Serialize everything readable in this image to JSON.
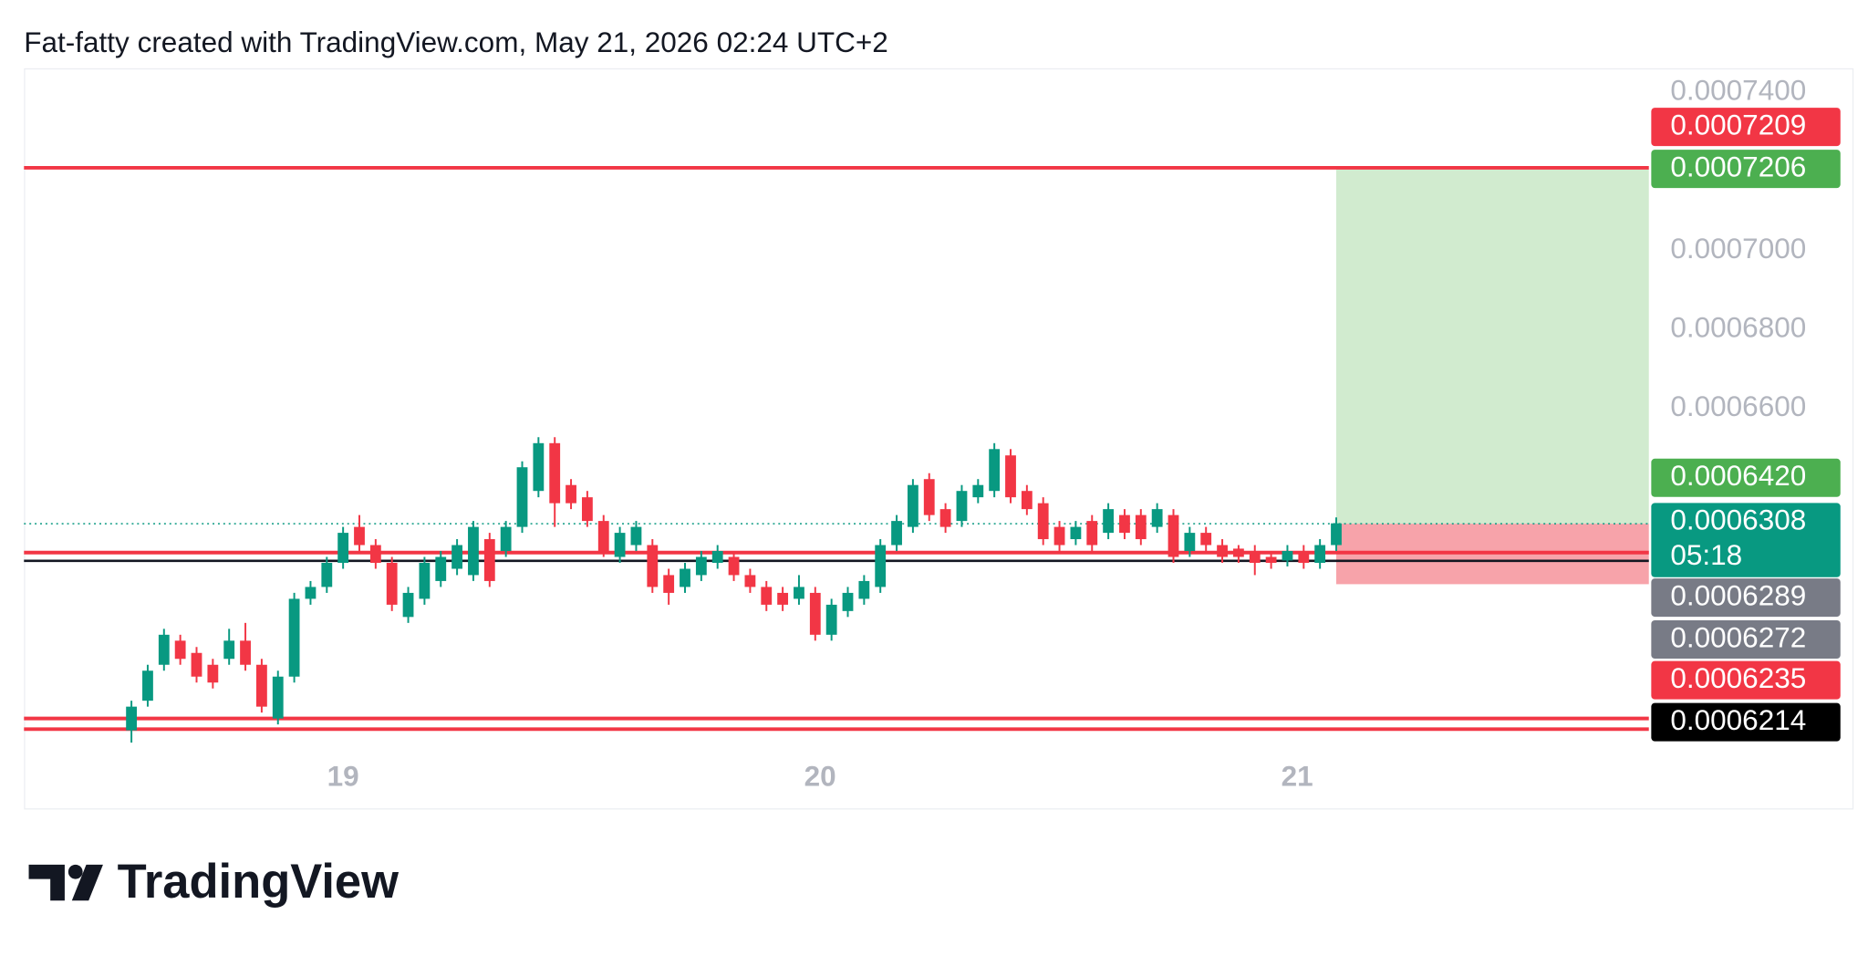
{
  "header": "Fat-fatty created with TradingView.com, May 21, 2026 02:24 UTC+2",
  "logo": "TradingView",
  "chart_data": {
    "type": "candlestick",
    "up_color": "#089981",
    "down_color": "#f23645",
    "open": [
      0.0005785,
      0.000586,
      0.0005951,
      0.0006012,
      0.0005981,
      0.0005951,
      0.0005966,
      0.0006012,
      0.0005951,
      0.0005815,
      0.0005921,
      0.0006118,
      0.0006148,
      0.0006209,
      0.00063,
      0.0006254,
      0.0006209,
      0.0006072,
      0.0006118,
      0.0006163,
      0.0006194,
      0.0006178,
      0.0006269,
      0.0006239,
      0.00063,
      0.0006391,
      0.0006512,
      0.0006406,
      0.0006375,
      0.0006315,
      0.0006224,
      0.0006254,
      0.0006254,
      0.0006178,
      0.0006148,
      0.0006178,
      0.0006209,
      0.0006224,
      0.0006178,
      0.0006148,
      0.0006133,
      0.0006118,
      0.0006133,
      0.0006027,
      0.0006087,
      0.0006118,
      0.0006148,
      0.0006254,
      0.00063,
      0.0006421,
      0.0006345,
      0.0006315,
      0.0006375,
      0.0006391,
      0.0006481,
      0.0006391,
      0.000636,
      0.00063,
      0.0006269,
      0.0006315,
      0.0006285,
      0.000633,
      0.000633,
      0.00063,
      0.000633,
      0.0006239,
      0.0006285,
      0.0006254,
      0.0006245,
      0.0006239,
      0.0006224,
      0.0006215,
      0.0006239,
      0.0006209,
      0.0006254
    ],
    "high": [
      0.000586,
      0.0005951,
      0.0006042,
      0.0006027,
      0.0005996,
      0.0005966,
      0.0006042,
      0.0006057,
      0.0005966,
      0.0005936,
      0.0006133,
      0.0006163,
      0.0006224,
      0.00063,
      0.000633,
      0.0006269,
      0.0006224,
      0.0006148,
      0.0006224,
      0.0006239,
      0.0006269,
      0.0006315,
      0.0006285,
      0.0006315,
      0.0006466,
      0.0006527,
      0.0006527,
      0.0006421,
      0.0006391,
      0.000633,
      0.00063,
      0.0006315,
      0.0006269,
      0.0006194,
      0.0006209,
      0.0006239,
      0.0006254,
      0.0006239,
      0.0006194,
      0.0006163,
      0.0006148,
      0.0006178,
      0.0006148,
      0.0006118,
      0.0006148,
      0.0006178,
      0.0006269,
      0.000633,
      0.0006421,
      0.0006436,
      0.000636,
      0.0006406,
      0.0006421,
      0.0006512,
      0.0006497,
      0.0006406,
      0.0006375,
      0.0006315,
      0.0006315,
      0.000633,
      0.000636,
      0.0006345,
      0.0006345,
      0.000636,
      0.0006345,
      0.00063,
      0.00063,
      0.0006269,
      0.0006254,
      0.0006254,
      0.0006239,
      0.0006254,
      0.0006254,
      0.0006269,
      0.0006324
    ],
    "low": [
      0.0005754,
      0.0005845,
      0.0005936,
      0.0005951,
      0.0005906,
      0.0005891,
      0.0005951,
      0.0005936,
      0.000583,
      0.00058,
      0.0005906,
      0.0006103,
      0.0006133,
      0.0006194,
      0.0006239,
      0.0006194,
      0.0006087,
      0.0006057,
      0.0006103,
      0.0006148,
      0.0006178,
      0.0006163,
      0.0006148,
      0.0006224,
      0.0006285,
      0.0006375,
      0.00063,
      0.0006345,
      0.00063,
      0.0006224,
      0.0006209,
      0.0006239,
      0.0006133,
      0.0006103,
      0.0006133,
      0.0006163,
      0.0006194,
      0.0006163,
      0.0006133,
      0.0006087,
      0.0006087,
      0.0006103,
      0.0006012,
      0.0006012,
      0.0006072,
      0.0006103,
      0.0006133,
      0.0006239,
      0.0006285,
      0.0006315,
      0.0006285,
      0.00063,
      0.000636,
      0.0006375,
      0.000636,
      0.000633,
      0.0006254,
      0.0006239,
      0.0006254,
      0.0006239,
      0.0006269,
      0.0006269,
      0.0006254,
      0.0006285,
      0.0006209,
      0.0006224,
      0.0006239,
      0.0006209,
      0.0006209,
      0.0006178,
      0.0006194,
      0.00062,
      0.0006194,
      0.0006194,
      0.0006239
    ],
    "close": [
      0.0005845,
      0.0005936,
      0.0006027,
      0.0005966,
      0.0005921,
      0.0005906,
      0.0006012,
      0.0005951,
      0.0005845,
      0.0005921,
      0.0006118,
      0.0006148,
      0.0006209,
      0.0006285,
      0.0006254,
      0.0006209,
      0.0006103,
      0.0006133,
      0.0006209,
      0.0006224,
      0.0006254,
      0.00063,
      0.0006163,
      0.00063,
      0.0006451,
      0.0006512,
      0.000636,
      0.000636,
      0.0006315,
      0.0006239,
      0.0006285,
      0.00063,
      0.0006148,
      0.0006133,
      0.0006194,
      0.0006224,
      0.0006239,
      0.0006178,
      0.0006148,
      0.0006103,
      0.0006103,
      0.0006148,
      0.0006027,
      0.0006103,
      0.0006133,
      0.0006163,
      0.0006254,
      0.0006315,
      0.0006406,
      0.000633,
      0.00063,
      0.0006391,
      0.0006406,
      0.0006497,
      0.0006375,
      0.0006345,
      0.0006269,
      0.0006254,
      0.00063,
      0.0006254,
      0.0006345,
      0.0006285,
      0.0006269,
      0.0006345,
      0.0006224,
      0.0006285,
      0.0006254,
      0.0006224,
      0.0006224,
      0.0006209,
      0.0006209,
      0.0006239,
      0.0006209,
      0.0006254,
      0.0006309
    ],
    "xlim": [
      -6.6,
      93.2
    ],
    "xticks": [
      {
        "value": 13,
        "label": "19"
      },
      {
        "value": 42.3,
        "label": "20"
      },
      {
        "value": 71.6,
        "label": "21"
      }
    ],
    "ylim": [
      0.0005724,
      0.0007461
    ],
    "yticks": [
      {
        "value": 0.00074,
        "label": "0.0007400"
      },
      {
        "value": 0.0007,
        "label": "0.0007000"
      },
      {
        "value": 0.00068,
        "label": "0.0006800"
      },
      {
        "value": 0.00066,
        "label": "0.0006600"
      }
    ],
    "lines": [
      {
        "value": 0.0007209,
        "color": "#f23645"
      },
      {
        "value": 0.0006235,
        "color": "#f23645"
      },
      {
        "value": 0.0006214,
        "color": "#131722"
      },
      {
        "value": 0.0005815,
        "color": "#f23645"
      },
      {
        "value": 0.0005788,
        "color": "#f23645"
      }
    ],
    "last_price_line": {
      "value": 0.0006308,
      "color": "#089981"
    },
    "boxes": [
      {
        "top": 0.0007206,
        "bottom": 0.0006308,
        "color": "#d1ebcf"
      },
      {
        "top": 0.0006308,
        "bottom": 0.0006155,
        "color": "#f7a3aa"
      }
    ],
    "badges": [
      {
        "value": 0.0007209,
        "label": "0.0007209",
        "color": "#f23645"
      },
      {
        "value": 0.0007206,
        "label": "0.0007206",
        "color": "#4caf50"
      },
      {
        "value": 0.000642,
        "label": "0.0006420",
        "color": "#4caf50"
      },
      {
        "value": 0.0006308,
        "label": "0.0006308",
        "color": "#089981",
        "countdown": "05:18"
      },
      {
        "value": 0.0006289,
        "label": "0.0006289",
        "color": "#787b86"
      },
      {
        "value": 0.0006272,
        "label": "0.0006272",
        "color": "#787b86"
      },
      {
        "value": 0.0006235,
        "label": "0.0006235",
        "color": "#f23645"
      },
      {
        "value": 0.0006214,
        "label": "0.0006214",
        "color": "#000000"
      }
    ]
  }
}
